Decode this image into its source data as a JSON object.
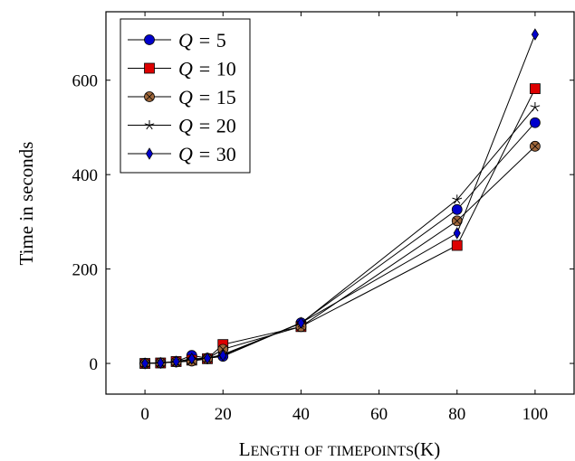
{
  "chart_data": {
    "type": "line",
    "xlabel": "Length of timepoints(K)",
    "ylabel": "Time in seconds",
    "xlim": [
      -10,
      110
    ],
    "ylim": [
      -65,
      745
    ],
    "xticks": [
      0,
      20,
      40,
      60,
      80,
      100
    ],
    "yticks": [
      0,
      200,
      400,
      600
    ],
    "grid": false,
    "legend_position": "top-left",
    "x": [
      0,
      4,
      8,
      12,
      16,
      20,
      40,
      80,
      100
    ],
    "series": [
      {
        "name": "Q = 5",
        "marker": "circle",
        "color": "#0000cc",
        "values": [
          0,
          1,
          4,
          17,
          11,
          15,
          86,
          326,
          510
        ]
      },
      {
        "name": "Q = 10",
        "marker": "square",
        "color": "#dd0000",
        "values": [
          0,
          1,
          4,
          7,
          10,
          40,
          78,
          250,
          582
        ]
      },
      {
        "name": "Q = 15",
        "marker": "circle-cross",
        "color": "#a0683c",
        "values": [
          0,
          1,
          3,
          5,
          10,
          30,
          78,
          302,
          460
        ]
      },
      {
        "name": "Q = 20",
        "marker": "star",
        "color": "#000000",
        "values": [
          0,
          1,
          3,
          8,
          11,
          19,
          85,
          347,
          543
        ]
      },
      {
        "name": "Q = 30",
        "marker": "diamond",
        "color": "#0000cc",
        "values": [
          0,
          1,
          4,
          10,
          11,
          17,
          86,
          276,
          697
        ]
      }
    ]
  }
}
